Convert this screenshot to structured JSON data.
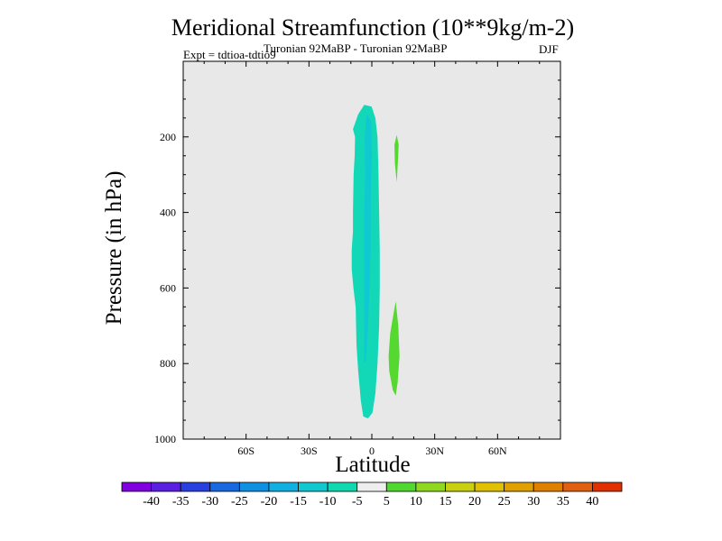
{
  "chart_data": {
    "type": "contour",
    "title": "Meridional Streamfunction (10**9kg/m-2)",
    "subtitle": "Turonian  92MaBP - Turonian  92MaBP",
    "experiment": "Expt = tdtioa-tdtio9",
    "season": "DJF",
    "xlabel": "Latitude",
    "ylabel": "Pressure (in hPa)",
    "xlim": [
      -90,
      90
    ],
    "ylim": [
      1000,
      0
    ],
    "x_ticks": [
      {
        "value": -60,
        "label": "60S"
      },
      {
        "value": -30,
        "label": "30S"
      },
      {
        "value": 0,
        "label": "0"
      },
      {
        "value": 30,
        "label": "30N"
      },
      {
        "value": 60,
        "label": "60N"
      }
    ],
    "y_ticks": [
      {
        "value": 200,
        "label": "200"
      },
      {
        "value": 400,
        "label": "400"
      },
      {
        "value": 600,
        "label": "600"
      },
      {
        "value": 800,
        "label": "800"
      },
      {
        "value": 1000,
        "label": "1000"
      }
    ],
    "colorbar": {
      "colors": [
        "#8000e0",
        "#5a1fe0",
        "#2840e0",
        "#1868e0",
        "#1090e0",
        "#10b0e0",
        "#10c8d0",
        "#10d8b0",
        "#eeeeee",
        "#50d830",
        "#90d820",
        "#c8d010",
        "#e0c000",
        "#e0a000",
        "#e08000",
        "#e06010",
        "#e03000"
      ],
      "levels": [
        "-40",
        "-35",
        "-30",
        "-25",
        "-20",
        "-15",
        "-10",
        "-5",
        "5",
        "10",
        "15",
        "20",
        "25",
        "30",
        "35",
        "40"
      ]
    },
    "regions": [
      {
        "name": "negative-cell-outer",
        "range": "-10 to -5",
        "color": "#12d8b8",
        "outline": [
          [
            -3.6,
            115
          ],
          [
            -0.1,
            120
          ],
          [
            1.7,
            150
          ],
          [
            2.7,
            200
          ],
          [
            3.2,
            300
          ],
          [
            3.5,
            400
          ],
          [
            3.8,
            500
          ],
          [
            3.8,
            600
          ],
          [
            3.5,
            700
          ],
          [
            2.7,
            800
          ],
          [
            1.7,
            880
          ],
          [
            0.3,
            930
          ],
          [
            -1.8,
            945
          ],
          [
            -4.1,
            940
          ],
          [
            -5.2,
            900
          ],
          [
            -6.5,
            820
          ],
          [
            -7.3,
            750
          ],
          [
            -7.7,
            650
          ],
          [
            -8.8,
            600
          ],
          [
            -9.6,
            550
          ],
          [
            -9.6,
            500
          ],
          [
            -9.0,
            450
          ],
          [
            -9.0,
            400
          ],
          [
            -8.7,
            300
          ],
          [
            -8.2,
            250
          ],
          [
            -8.0,
            200
          ],
          [
            -9.0,
            180
          ],
          [
            -6.5,
            140
          ]
        ]
      },
      {
        "name": "negative-cell-inner",
        "range": "-15 to -10",
        "color": "#10c8d2",
        "outline": [
          [
            -2.5,
            140
          ],
          [
            -0.3,
            160
          ],
          [
            0.0,
            250
          ],
          [
            -0.5,
            350
          ],
          [
            -0.6,
            500
          ],
          [
            -1.1,
            600
          ],
          [
            -1.8,
            700
          ],
          [
            -2.7,
            790
          ],
          [
            -3.6,
            800
          ],
          [
            -3.6,
            600
          ],
          [
            -3.6,
            400
          ],
          [
            -3.2,
            300
          ],
          [
            -3.4,
            200
          ]
        ]
      },
      {
        "name": "positive-cell-upper",
        "range": "5 to 10",
        "color": "#55d830",
        "outline": [
          [
            11.9,
            195
          ],
          [
            12.8,
            220
          ],
          [
            12.5,
            260
          ],
          [
            11.9,
            320
          ],
          [
            11.0,
            270
          ],
          [
            10.8,
            220
          ]
        ]
      },
      {
        "name": "positive-cell-lower",
        "range": "5 to 10",
        "color": "#55d830",
        "outline": [
          [
            11.4,
            635
          ],
          [
            12.6,
            700
          ],
          [
            13.2,
            780
          ],
          [
            12.3,
            850
          ],
          [
            11.4,
            885
          ],
          [
            10.0,
            870
          ],
          [
            8.3,
            820
          ],
          [
            8.0,
            780
          ],
          [
            8.8,
            720
          ],
          [
            10.3,
            670
          ]
        ]
      }
    ]
  }
}
